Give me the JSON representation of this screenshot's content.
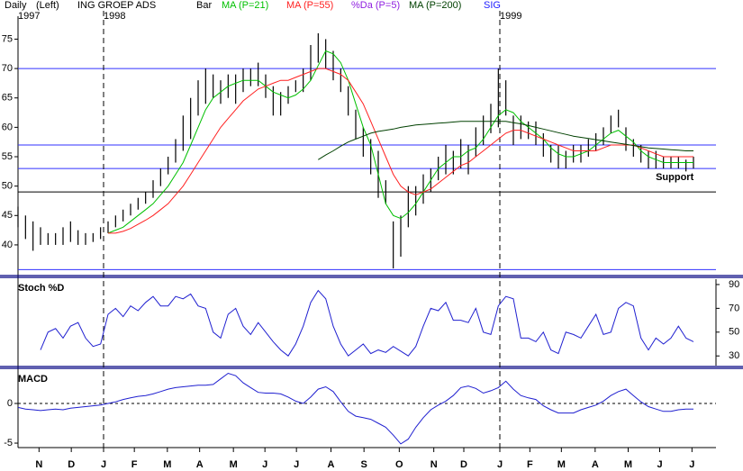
{
  "chart_data": [
    {
      "type": "range_bar",
      "period": "Daily",
      "scale_note": "(Left)",
      "title": "ING GROEP ADS",
      "years": [
        {
          "value": 0,
          "label": "1997"
        },
        {
          "value": 11.4,
          "label": "1998"
        },
        {
          "value": 64.2,
          "label": "1999"
        }
      ],
      "xlim": [
        0,
        93
      ],
      "ylim": [
        35.7,
        78.9
      ],
      "yticks": [
        40,
        45,
        50,
        55,
        60,
        65,
        70,
        75
      ],
      "hlines": [
        {
          "value": 70,
          "color": "#3030ff"
        },
        {
          "value": 57,
          "color": "#3030ff"
        },
        {
          "value": 53,
          "color": "#3030ff"
        },
        {
          "value": 49,
          "color": "#000000"
        },
        {
          "value": 35.8,
          "color": "#3030ff"
        }
      ],
      "annotation": {
        "text": "Support",
        "x": 87.5,
        "y": 51.5
      },
      "series": [
        {
          "name": "Bar",
          "color": "#000000",
          "low": [
            43,
            41,
            39,
            40,
            40,
            40,
            40,
            40.5,
            40,
            40,
            40.5,
            41,
            42,
            43,
            44,
            45,
            46,
            47,
            48,
            50,
            52,
            54,
            56,
            58,
            62,
            64,
            65,
            64,
            65,
            64,
            66,
            67,
            67,
            65,
            62,
            62,
            64,
            66,
            66,
            68,
            71,
            70,
            68,
            66,
            62,
            58,
            55,
            52,
            48,
            47,
            36,
            38,
            43,
            45,
            47,
            49,
            51,
            52,
            52,
            53,
            52,
            55,
            57,
            59,
            60,
            62,
            57,
            58,
            58,
            57,
            55,
            54,
            53,
            53,
            54,
            54,
            55,
            56,
            57,
            59,
            60,
            56,
            55,
            54,
            53,
            53,
            53,
            53,
            53,
            52.5,
            53
          ],
          "high": [
            46.5,
            45,
            44,
            43,
            42,
            42,
            43,
            44,
            42.5,
            42,
            42,
            43,
            44,
            45,
            46,
            47,
            48,
            49,
            51,
            53,
            55,
            58,
            62,
            65,
            68,
            70,
            69,
            68,
            69,
            69,
            70,
            70,
            71,
            69,
            67,
            66,
            67,
            68,
            70,
            74,
            76,
            75,
            73,
            70,
            67,
            63,
            60,
            58,
            56,
            51,
            44,
            45,
            50,
            50,
            52,
            53,
            55,
            57,
            56,
            58,
            57,
            60,
            62,
            64,
            70,
            68,
            62,
            62,
            61,
            61,
            59,
            57,
            57,
            56,
            57,
            57,
            58,
            59,
            60,
            62,
            63,
            60,
            58,
            57,
            56,
            56,
            55,
            55,
            55,
            54.5,
            55
          ]
        },
        {
          "name": "MA (P=21)",
          "color": "#00c000",
          "values": [
            null,
            null,
            null,
            null,
            null,
            null,
            null,
            null,
            null,
            null,
            null,
            null,
            42,
            42.5,
            43,
            44,
            45,
            46,
            47,
            48.5,
            50,
            52,
            54,
            57,
            60,
            63,
            65,
            66,
            67,
            67.5,
            68,
            68,
            68,
            67,
            66,
            65.5,
            65,
            65.5,
            66.5,
            68,
            70.5,
            73,
            72.5,
            71,
            68,
            64,
            60,
            57,
            52,
            47,
            45,
            44.5,
            45.5,
            47,
            49,
            51,
            53,
            54,
            55,
            55,
            56,
            56.5,
            58,
            60,
            62,
            63,
            62.5,
            61,
            60,
            59,
            58,
            56.5,
            55.5,
            55,
            55,
            55.5,
            56,
            57,
            58,
            59,
            59.5,
            58.5,
            57.5,
            56,
            55,
            54.5,
            54,
            54,
            54,
            54,
            54
          ]
        },
        {
          "name": "MA (P=55)",
          "color": "#ff2020",
          "values": [
            null,
            null,
            null,
            null,
            null,
            null,
            null,
            null,
            null,
            null,
            null,
            null,
            42,
            42,
            42.3,
            42.8,
            43.5,
            44.2,
            45,
            46,
            47,
            48.5,
            50,
            52,
            54,
            56,
            58,
            60,
            61.5,
            63,
            64.5,
            65.5,
            66.5,
            67,
            67.5,
            68,
            68,
            68.5,
            69,
            69.5,
            70,
            70,
            69.5,
            69,
            68,
            66,
            64,
            61,
            58,
            55,
            52,
            50,
            49,
            48.5,
            49,
            49.5,
            50.5,
            51.5,
            52.5,
            53.5,
            54,
            55,
            56,
            57,
            58,
            59,
            59.5,
            59.5,
            59,
            58.5,
            58,
            57.5,
            57,
            56.5,
            56,
            56,
            56,
            56,
            56.5,
            57,
            57,
            57,
            57,
            56.5,
            56,
            55.5,
            55,
            55,
            55,
            55,
            55
          ]
        },
        {
          "name": "MA (P=200)",
          "color": "#004000",
          "values": [
            null,
            null,
            null,
            null,
            null,
            null,
            null,
            null,
            null,
            null,
            null,
            null,
            null,
            null,
            null,
            null,
            null,
            null,
            null,
            null,
            null,
            null,
            null,
            null,
            null,
            null,
            null,
            null,
            null,
            null,
            null,
            null,
            null,
            null,
            null,
            null,
            null,
            null,
            null,
            null,
            54.5,
            55.3,
            56,
            56.8,
            57.5,
            58,
            58.5,
            59,
            59.3,
            59.5,
            59.7,
            60,
            60.2,
            60.4,
            60.5,
            60.6,
            60.7,
            60.8,
            60.9,
            61,
            61,
            61,
            61,
            61,
            61,
            61,
            60.8,
            60.6,
            60.3,
            60,
            59.7,
            59.4,
            59.1,
            58.8,
            58.5,
            58.3,
            58.1,
            57.9,
            57.7,
            57.5,
            57.3,
            57.1,
            56.9,
            56.7,
            56.5,
            56.4,
            56.3,
            56.2,
            56.1,
            56,
            56
          ]
        }
      ]
    },
    {
      "type": "line",
      "title": "Stoch %D",
      "xlim": [
        0,
        93
      ],
      "ylim": [
        22.6,
        94.5
      ],
      "yticks": [
        30,
        50,
        70,
        90
      ],
      "series": [
        {
          "name": "%Da (P=5)",
          "color": "#2020d0",
          "legend_color": "#9020e0",
          "values": [
            null,
            null,
            null,
            35,
            50,
            53,
            45,
            55,
            58,
            45,
            38,
            40,
            65,
            70,
            63,
            72,
            68,
            75,
            80,
            72,
            72,
            80,
            78,
            82,
            72,
            70,
            50,
            45,
            65,
            70,
            55,
            48,
            58,
            50,
            42,
            35,
            30,
            40,
            55,
            75,
            85,
            78,
            55,
            40,
            30,
            35,
            40,
            32,
            35,
            33,
            38,
            34,
            30,
            38,
            55,
            70,
            68,
            75,
            60,
            60,
            58,
            70,
            50,
            48,
            72,
            80,
            78,
            45,
            45,
            42,
            50,
            35,
            32,
            50,
            48,
            45,
            55,
            65,
            48,
            50,
            70,
            75,
            72,
            45,
            35,
            45,
            40,
            45,
            55,
            45,
            42
          ]
        }
      ]
    },
    {
      "type": "line",
      "title": "MACD",
      "xlim": [
        0,
        93
      ],
      "ylim": [
        -5.45,
        4.2
      ],
      "yticks": [
        0,
        -5
      ],
      "xticks": [
        {
          "value": 2.8,
          "label": "N"
        },
        {
          "value": 7.1,
          "label": "D"
        },
        {
          "value": 11.4,
          "label": "J"
        },
        {
          "value": 15.5,
          "label": "F"
        },
        {
          "value": 19.9,
          "label": "M"
        },
        {
          "value": 24.2,
          "label": "A"
        },
        {
          "value": 28.7,
          "label": "M"
        },
        {
          "value": 32.9,
          "label": "J"
        },
        {
          "value": 37.1,
          "label": "J"
        },
        {
          "value": 41.7,
          "label": "A"
        },
        {
          "value": 46.1,
          "label": "S"
        },
        {
          "value": 50.8,
          "label": "O"
        },
        {
          "value": 55.4,
          "label": "N"
        },
        {
          "value": 59.4,
          "label": "D"
        },
        {
          "value": 64.2,
          "label": "J"
        },
        {
          "value": 68.2,
          "label": "F"
        },
        {
          "value": 72.4,
          "label": "M"
        },
        {
          "value": 76.9,
          "label": "A"
        },
        {
          "value": 81.3,
          "label": "M"
        },
        {
          "value": 85.5,
          "label": "J"
        },
        {
          "value": 89.8,
          "label": "J"
        }
      ],
      "series": [
        {
          "name": "SIG",
          "color": "#2020d0",
          "legend_color": "#2020ff",
          "values": [
            -0.5,
            -0.7,
            -0.8,
            -0.9,
            -0.8,
            -0.7,
            -0.8,
            -0.6,
            -0.5,
            -0.4,
            -0.3,
            -0.2,
            0,
            0.2,
            0.5,
            0.7,
            0.9,
            1.0,
            1.2,
            1.5,
            1.8,
            2.0,
            2.1,
            2.2,
            2.3,
            2.3,
            2.4,
            3.1,
            3.8,
            3.5,
            2.6,
            2.0,
            1.4,
            1.3,
            1.3,
            1.2,
            0.8,
            0.3,
            0,
            0.8,
            1.8,
            2.1,
            1.5,
            0.2,
            -1.0,
            -1.6,
            -1.8,
            -2.0,
            -2.5,
            -3.0,
            -4.0,
            -5.1,
            -4.5,
            -3.0,
            -1.8,
            -0.8,
            -0.2,
            0.3,
            1.0,
            2.0,
            2.2,
            1.9,
            1.3,
            1.6,
            2.0,
            2.8,
            1.8,
            1.0,
            0.7,
            0.5,
            -0.3,
            -0.8,
            -1.2,
            -1.2,
            -1.2,
            -0.8,
            -0.5,
            -0.2,
            0.3,
            1.0,
            1.5,
            1.8,
            1.0,
            0.2,
            -0.4,
            -0.7,
            -1.0,
            -1.0,
            -0.8,
            -0.7,
            -0.7
          ]
        }
      ]
    }
  ]
}
